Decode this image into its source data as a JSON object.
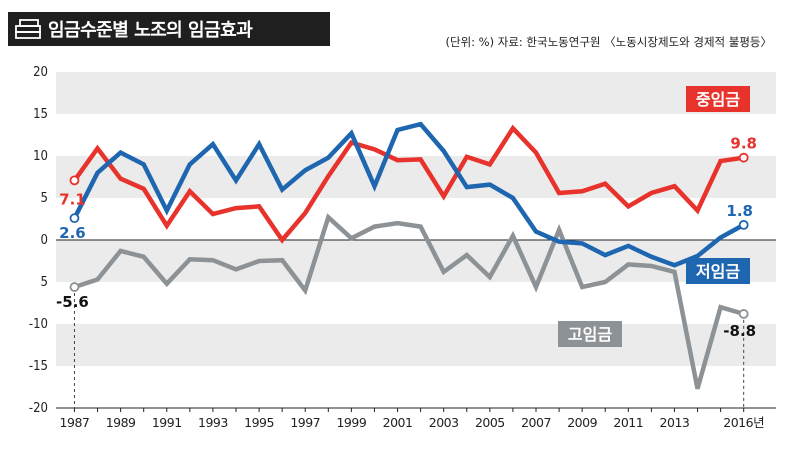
{
  "header": {
    "title": "임금수준별 노조의 임금효과",
    "source": "(단위: %) 자료: 한국노동연구원 〈노동시장제도와 경제적 불평등〉",
    "icon": "money-stack-icon"
  },
  "chart_data": {
    "type": "line",
    "xlabel": "",
    "ylabel": "",
    "x": [
      1987,
      1988,
      1989,
      1990,
      1991,
      1992,
      1993,
      1994,
      1995,
      1996,
      1997,
      1998,
      1999,
      2000,
      2001,
      2002,
      2003,
      2004,
      2005,
      2006,
      2007,
      2008,
      2009,
      2010,
      2011,
      2012,
      2013,
      2014,
      2015,
      2016
    ],
    "x_tick_labels": [
      "1987",
      "1989",
      "1991",
      "1993",
      "1995",
      "1997",
      "1999",
      "2001",
      "2003",
      "2005",
      "2007",
      "2009",
      "2011",
      "2013",
      "2016년"
    ],
    "x_tick_values": [
      1987,
      1989,
      1991,
      1993,
      1995,
      1997,
      1999,
      2001,
      2003,
      2005,
      2007,
      2009,
      2011,
      2013,
      2016
    ],
    "y_tick_labels": [
      "20",
      "15",
      "10",
      "5",
      "0",
      "5",
      "-10",
      "-15",
      "-20"
    ],
    "y_tick_values": [
      20,
      15,
      10,
      5,
      0,
      -5,
      -10,
      -15,
      -20
    ],
    "ylim": [
      -20,
      20
    ],
    "xlim": [
      1986.2,
      2017.4
    ],
    "grid": "horizontal-bands",
    "series": [
      {
        "name": "중임금",
        "color": "#e8322c",
        "values": [
          7.1,
          10.9,
          7.3,
          6.1,
          1.7,
          5.8,
          3.1,
          3.8,
          4.0,
          0.0,
          3.2,
          7.6,
          11.6,
          10.8,
          9.5,
          9.6,
          5.2,
          9.9,
          9.0,
          13.3,
          10.4,
          5.6,
          5.8,
          6.7,
          4.0,
          5.6,
          6.4,
          3.5,
          9.4,
          9.8
        ],
        "start_label": "7.1",
        "end_label": "9.8"
      },
      {
        "name": "저임금",
        "color": "#1f66b0",
        "values": [
          2.6,
          8.0,
          10.4,
          9.0,
          3.5,
          9.0,
          11.4,
          7.1,
          11.4,
          6.0,
          8.3,
          9.8,
          12.7,
          6.4,
          13.1,
          13.8,
          10.6,
          6.3,
          6.6,
          5.0,
          1.0,
          -0.2,
          -0.4,
          -1.8,
          -0.7,
          -2.0,
          -3.0,
          -1.9,
          0.3,
          1.8
        ],
        "start_label": "2.6",
        "end_label": "1.8"
      },
      {
        "name": "고임금",
        "color": "#8c9295",
        "values": [
          -5.6,
          -4.7,
          -1.3,
          -2.0,
          -5.2,
          -2.3,
          -2.4,
          -3.5,
          -2.5,
          -2.4,
          -6.0,
          2.7,
          0.2,
          1.6,
          2.0,
          1.6,
          -3.8,
          -1.8,
          -4.4,
          0.5,
          -5.6,
          1.2,
          -5.6,
          -5.0,
          -2.9,
          -3.1,
          -3.8,
          -17.7,
          -8.0,
          -8.8
        ],
        "start_label": "-5.6",
        "end_label": "-8.8"
      }
    ]
  }
}
